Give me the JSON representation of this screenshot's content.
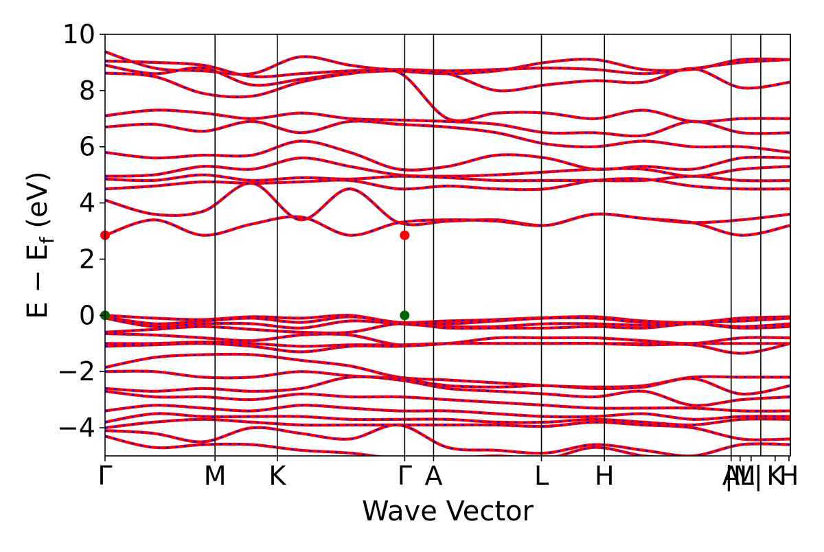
{
  "chart_data": {
    "type": "line",
    "title": "",
    "xlabel": "Wave Vector",
    "ylabel_prefix": "E − E",
    "ylabel_sub": "f",
    "ylabel_suffix": " (eV)",
    "ylim": [
      -5,
      10
    ],
    "yticks": [
      -4,
      -2,
      0,
      2,
      4,
      6,
      8,
      10
    ],
    "ytick_labels": [
      "−4",
      "−2",
      "0",
      "2",
      "4",
      "6",
      "8",
      "10"
    ],
    "xlim": [
      0,
      1
    ],
    "kpoint_labels": [
      {
        "x": 0.0,
        "label": "Γ"
      },
      {
        "x": 0.1605,
        "label": "M"
      },
      {
        "x": 0.2513,
        "label": "K"
      },
      {
        "x": 0.4372,
        "label": "Γ"
      },
      {
        "x": 0.4794,
        "label": "A"
      },
      {
        "x": 0.6368,
        "label": "L"
      },
      {
        "x": 0.7287,
        "label": "H"
      },
      {
        "x": 0.9136,
        "label": "A"
      },
      {
        "x": 0.9267,
        "label": "|M"
      },
      {
        "x": 0.9427,
        "label": "L|"
      },
      {
        "x": 0.9778,
        "label": "K"
      },
      {
        "x": 0.998,
        "label": "H"
      }
    ],
    "vlines": [
      0.1605,
      0.2513,
      0.4372,
      0.4794,
      0.6368,
      0.7287,
      0.9136,
      0.9568,
      1.0
    ],
    "grid": false,
    "legend": "none",
    "series_style": {
      "red": {
        "color": "#ff0000"
      },
      "blue": {
        "color": "#0000ff"
      }
    },
    "markers": [
      {
        "x": 0.0,
        "y": 2.85,
        "color": "#ff0000"
      },
      {
        "x": 0.4372,
        "y": 2.85,
        "color": "#ff0000"
      },
      {
        "x": 0.0,
        "y": 0.0,
        "color": "#006400"
      },
      {
        "x": 0.4372,
        "y": 0.0,
        "color": "#006400"
      }
    ],
    "bands": [
      [
        9.38,
        8.8,
        8.7,
        8.6,
        9.2,
        8.9,
        8.7,
        8.6,
        8.7,
        9.0,
        9.1,
        8.75,
        8.75,
        9.1,
        9.1
      ],
      [
        9.05,
        9.0,
        8.9,
        8.5,
        8.6,
        8.7,
        8.75,
        8.7,
        8.75,
        8.8,
        8.75,
        8.6,
        8.78,
        9.0,
        9.1
      ],
      [
        8.9,
        8.6,
        8.8,
        8.2,
        8.4,
        8.62,
        8.7,
        8.6,
        8.0,
        8.2,
        8.35,
        8.3,
        8.78,
        8.1,
        8.3
      ],
      [
        8.62,
        8.5,
        7.9,
        7.8,
        8.3,
        8.6,
        8.65,
        7.0,
        7.2,
        7.2,
        7.0,
        7.3,
        6.9,
        7.0,
        7.0
      ],
      [
        7.1,
        7.3,
        7.2,
        7.0,
        7.2,
        7.0,
        6.95,
        6.9,
        6.8,
        6.5,
        6.5,
        6.4,
        6.9,
        6.5,
        6.5
      ],
      [
        6.7,
        6.8,
        6.55,
        6.9,
        6.5,
        6.9,
        6.8,
        6.7,
        6.5,
        6.1,
        6.0,
        6.2,
        6.0,
        6.0,
        5.8
      ],
      [
        5.8,
        5.6,
        5.7,
        5.7,
        6.2,
        5.8,
        5.2,
        5.3,
        5.7,
        5.6,
        5.2,
        5.3,
        5.2,
        5.6,
        5.6
      ],
      [
        4.95,
        5.0,
        5.3,
        5.2,
        5.6,
        5.3,
        5.0,
        4.95,
        5.0,
        5.1,
        5.2,
        5.2,
        4.95,
        5.2,
        5.3
      ],
      [
        4.85,
        4.8,
        5.0,
        4.8,
        4.9,
        4.85,
        4.95,
        4.9,
        4.8,
        4.8,
        4.8,
        4.8,
        4.95,
        4.8,
        4.8
      ],
      [
        4.5,
        4.6,
        4.75,
        4.7,
        4.75,
        4.8,
        4.5,
        4.6,
        4.5,
        4.5,
        4.8,
        4.85,
        4.6,
        4.5,
        4.5
      ],
      [
        4.1,
        3.6,
        3.7,
        4.7,
        3.4,
        4.5,
        3.3,
        3.35,
        3.4,
        3.2,
        3.6,
        3.45,
        3.3,
        3.4,
        3.6
      ],
      [
        2.85,
        3.4,
        2.85,
        3.25,
        3.5,
        2.85,
        3.3,
        3.4,
        3.35,
        3.2,
        3.6,
        3.45,
        3.3,
        2.85,
        3.2
      ],
      [
        0.0,
        -0.1,
        -0.15,
        -0.05,
        -0.1,
        0.0,
        -0.25,
        -0.2,
        -0.15,
        -0.08,
        -0.05,
        -0.2,
        -0.25,
        -0.1,
        -0.05
      ],
      [
        -0.05,
        -0.3,
        -0.2,
        -0.1,
        -0.25,
        -0.05,
        -0.25,
        -0.3,
        -0.2,
        -0.1,
        -0.1,
        -0.25,
        -0.25,
        -0.2,
        -0.1
      ],
      [
        -0.1,
        -0.4,
        -0.3,
        -0.3,
        -0.45,
        -0.2,
        -0.3,
        -0.4,
        -0.4,
        -0.3,
        -0.3,
        -0.35,
        -0.3,
        -0.4,
        -0.3
      ],
      [
        -0.6,
        -0.5,
        -0.4,
        -0.5,
        -0.6,
        -0.6,
        -0.3,
        -0.45,
        -0.45,
        -0.45,
        -0.4,
        -0.45,
        -0.3,
        -0.45,
        -0.4
      ],
      [
        -0.65,
        -0.7,
        -0.8,
        -0.9,
        -0.7,
        -0.7,
        -1.05,
        -1.0,
        -0.8,
        -0.8,
        -0.8,
        -0.9,
        -1.0,
        -0.8,
        -0.8
      ],
      [
        -1.0,
        -1.0,
        -0.95,
        -1.0,
        -1.1,
        -1.05,
        -1.05,
        -1.0,
        -1.0,
        -1.0,
        -1.0,
        -1.0,
        -1.0,
        -1.0,
        -1.0
      ],
      [
        -1.1,
        -1.05,
        -1.0,
        -1.1,
        -1.3,
        -1.1,
        -1.1,
        -1.0,
        -1.0,
        -1.0,
        -1.0,
        -1.05,
        -1.05,
        -1.35,
        -1.0
      ],
      [
        -1.85,
        -1.5,
        -1.4,
        -1.4,
        -1.6,
        -1.8,
        -2.2,
        -2.3,
        -2.4,
        -2.5,
        -2.55,
        -2.5,
        -2.2,
        -2.2,
        -2.2
      ],
      [
        -2.0,
        -2.0,
        -2.2,
        -2.2,
        -2.0,
        -2.15,
        -2.25,
        -2.5,
        -2.55,
        -2.5,
        -2.6,
        -2.55,
        -2.25,
        -2.8,
        -2.5
      ],
      [
        -2.6,
        -2.7,
        -2.6,
        -2.7,
        -2.6,
        -2.2,
        -2.3,
        -2.6,
        -2.7,
        -2.8,
        -2.9,
        -2.7,
        -3.2,
        -3.0,
        -2.9
      ],
      [
        -2.7,
        -2.9,
        -2.9,
        -3.0,
        -2.8,
        -2.9,
        -2.9,
        -3.0,
        -3.1,
        -3.2,
        -3.3,
        -3.3,
        -3.3,
        -3.4,
        -3.4
      ],
      [
        -3.4,
        -3.2,
        -3.3,
        -3.4,
        -3.2,
        -3.3,
        -3.4,
        -3.4,
        -3.5,
        -3.6,
        -3.6,
        -3.5,
        -3.7,
        -3.6,
        -3.6
      ],
      [
        -3.8,
        -3.5,
        -3.6,
        -3.6,
        -3.6,
        -3.7,
        -3.7,
        -3.7,
        -3.8,
        -3.8,
        -3.7,
        -3.8,
        -3.9,
        -3.7,
        -3.7
      ],
      [
        -4.0,
        -3.8,
        -3.7,
        -3.8,
        -3.9,
        -3.9,
        -3.9,
        -3.9,
        -3.9,
        -3.95,
        -3.8,
        -3.9,
        -4.0,
        -4.4,
        -4.4
      ],
      [
        -4.1,
        -4.2,
        -4.5,
        -4.0,
        -4.2,
        -4.4,
        -3.9,
        -4.7,
        -4.8,
        -4.9,
        -4.6,
        -4.8,
        -5.0,
        -4.6,
        -4.6
      ],
      [
        -4.3,
        -4.7,
        -4.6,
        -4.6,
        -4.8,
        -4.9,
        -5.1,
        -5.1,
        -5.0,
        -5.1,
        -4.7,
        -5.0,
        -5.1,
        -5.1,
        -5.1
      ]
    ]
  }
}
